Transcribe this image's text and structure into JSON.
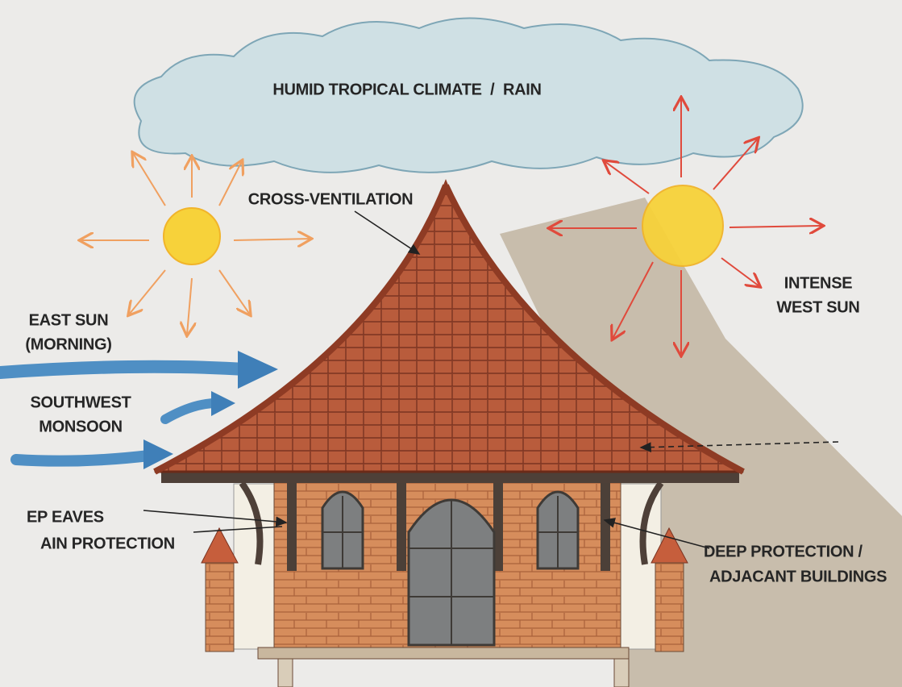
{
  "labels": {
    "climate": "HUMID TROPICAL CLIMATE  /  RAIN",
    "ventilation": "CROSS-VENTILATION",
    "east_sun": [
      "EAST SUN",
      "(MORNING)"
    ],
    "west_sun": [
      "INTENSE",
      "WEST SUN"
    ],
    "monsoon": [
      "SOUTHWEST",
      "MONSOON"
    ],
    "eaves": [
      "EP EAVES",
      "AIN PROTECTION"
    ],
    "protection": [
      "DEEP PROTECTION /",
      "ADJACANT BUILDINGS"
    ]
  }
}
